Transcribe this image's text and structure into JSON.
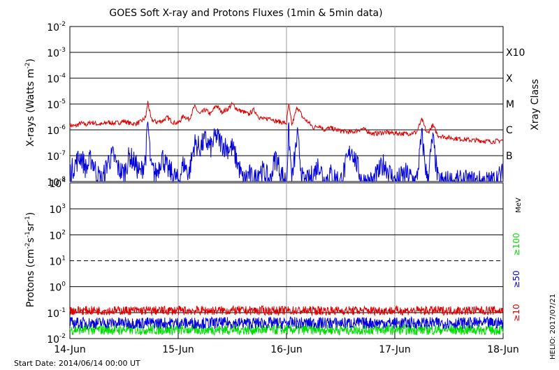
{
  "chart_data": [
    {
      "type": "line",
      "title": "GOES Soft X-ray and Protons Fluxes   (1min & 5min data)",
      "ylabel": "X-rays (Watts m^-2)",
      "ylabel_parts": [
        "X-rays (Watts m",
        "-2",
        ")"
      ],
      "yscale": "log",
      "ylim": [
        1e-08,
        0.01
      ],
      "y_ticks": [
        {
          "base": "10",
          "exp": "-2"
        },
        {
          "base": "10",
          "exp": "-3"
        },
        {
          "base": "10",
          "exp": "-4"
        },
        {
          "base": "10",
          "exp": "-5"
        },
        {
          "base": "10",
          "exp": "-6"
        },
        {
          "base": "10",
          "exp": "-7"
        },
        {
          "base": "10",
          "exp": "-8"
        }
      ],
      "right_axis_label": "Xray Class",
      "class_labels": [
        {
          "label": "X10",
          "value": 0.001
        },
        {
          "label": "X",
          "value": 0.0001
        },
        {
          "label": "M",
          "value": 1e-05
        },
        {
          "label": "C",
          "value": 1e-06
        },
        {
          "label": "B",
          "value": 1e-07
        }
      ],
      "grid": true,
      "series": [
        {
          "color": "#dd0000",
          "x": [
            0,
            0.05,
            0.1,
            0.15,
            0.2,
            0.25,
            0.3,
            0.35,
            0.4,
            0.45,
            0.5,
            0.55,
            0.6,
            0.65,
            0.7,
            0.72,
            0.75,
            0.8,
            0.85,
            0.9,
            0.95,
            1.0,
            1.05,
            1.1,
            1.15,
            1.2,
            1.25,
            1.3,
            1.35,
            1.4,
            1.45,
            1.5,
            1.55,
            1.6,
            1.65,
            1.7,
            1.75,
            1.8,
            1.85,
            1.9,
            1.95,
            2.0,
            2.02,
            2.05,
            2.1,
            2.15,
            2.2,
            2.25,
            2.3,
            2.35,
            2.4,
            2.5,
            2.6,
            2.7,
            2.8,
            2.9,
            3.0,
            3.1,
            3.2,
            3.25,
            3.3,
            3.35,
            3.4,
            3.5,
            3.6,
            3.7,
            3.8,
            3.9,
            4.0
          ],
          "y": [
            1.5e-06,
            1.4e-06,
            1.8e-06,
            1.6e-06,
            2e-06,
            1.7e-06,
            1.6e-06,
            2e-06,
            1.8e-06,
            1.9e-06,
            2.2e-06,
            1.8e-06,
            1.7e-06,
            2e-06,
            3e-06,
            1.2e-05,
            2.5e-06,
            2e-06,
            2.2e-06,
            3e-06,
            2e-06,
            1.8e-06,
            3.5e-06,
            2.5e-06,
            8e-06,
            4e-06,
            6e-06,
            4e-06,
            9e-06,
            5e-06,
            6e-06,
            1e-05,
            6e-06,
            5e-06,
            4e-06,
            6e-06,
            3e-06,
            2.5e-06,
            3e-06,
            2.2e-06,
            2e-06,
            1.8e-06,
            1e-05,
            1.5e-06,
            8e-06,
            3e-06,
            2e-06,
            1.2e-06,
            1.5e-06,
            1e-06,
            1.2e-06,
            9e-07,
            8e-07,
            1.1e-06,
            7e-07,
            8e-07,
            7.5e-07,
            7e-07,
            8e-07,
            2.5e-06,
            7e-07,
            1.5e-06,
            6e-07,
            5e-07,
            4.5e-07,
            4e-07,
            3.8e-07,
            3.5e-07,
            4e-07
          ]
        },
        {
          "color": "#0000dd",
          "x": [
            0,
            0.05,
            0.1,
            0.15,
            0.2,
            0.25,
            0.3,
            0.35,
            0.4,
            0.45,
            0.5,
            0.55,
            0.6,
            0.65,
            0.7,
            0.72,
            0.75,
            0.8,
            0.85,
            0.9,
            0.95,
            1.0,
            1.05,
            1.1,
            1.15,
            1.2,
            1.25,
            1.3,
            1.35,
            1.4,
            1.45,
            1.5,
            1.55,
            1.6,
            1.65,
            1.7,
            1.75,
            1.8,
            1.85,
            1.9,
            1.95,
            2.0,
            2.02,
            2.05,
            2.1,
            2.15,
            2.2,
            2.25,
            2.3,
            2.35,
            2.4,
            2.5,
            2.6,
            2.7,
            2.8,
            2.9,
            3.0,
            3.1,
            3.2,
            3.25,
            3.3,
            3.35,
            3.4,
            3.5,
            3.6,
            3.7,
            3.8,
            3.9,
            4.0
          ],
          "y": [
            2e-08,
            5e-08,
            1e-07,
            3e-08,
            8e-08,
            2e-08,
            1e-08,
            6e-08,
            1e-07,
            3e-08,
            2e-08,
            1e-07,
            5e-08,
            2e-08,
            8e-08,
            2e-06,
            3e-08,
            2e-08,
            1e-07,
            3e-08,
            2e-08,
            1e-08,
            5e-08,
            2e-08,
            3e-07,
            2e-07,
            4e-07,
            2e-07,
            6e-07,
            3e-07,
            2e-07,
            2e-07,
            5e-08,
            1e-08,
            2e-08,
            1e-08,
            3e-08,
            2e-08,
            1e-08,
            1e-07,
            2e-08,
            1e-08,
            1e-06,
            1e-08,
            6e-07,
            1e-08,
            1e-08,
            2e-08,
            5e-08,
            1e-08,
            2e-08,
            1e-08,
            2e-07,
            1e-08,
            1e-08,
            5e-08,
            1e-08,
            2e-08,
            1e-08,
            6e-07,
            1e-08,
            5e-07,
            1e-08,
            1e-08,
            1e-08,
            1e-08,
            1e-08,
            1e-08,
            2e-08
          ]
        }
      ]
    },
    {
      "type": "line",
      "ylabel": "Protons (cm^-2 s^-1 sr^-1)",
      "ylabel_parts": [
        "Protons (cm",
        "-2",
        "s",
        "-1",
        "sr",
        "-1",
        ")"
      ],
      "yscale": "log",
      "ylim": [
        0.01,
        10000
      ],
      "y_ticks": [
        {
          "base": "10",
          "exp": "4"
        },
        {
          "base": "10",
          "exp": "3"
        },
        {
          "base": "10",
          "exp": "2"
        },
        {
          "base": "10",
          "exp": "1"
        },
        {
          "base": "10",
          "exp": "0"
        },
        {
          "base": "10",
          "exp": "-1"
        },
        {
          "base": "10",
          "exp": "-2"
        }
      ],
      "threshold_line": 10,
      "energy_unit": "MeV",
      "energy_labels": [
        {
          "label": "≥100",
          "color": "#00dd00"
        },
        {
          "label": "≥50",
          "color": "#0000dd"
        },
        {
          "label": "≥10",
          "color": "#dd0000"
        }
      ],
      "grid": true,
      "series": [
        {
          "name": "≥10",
          "color": "#dd0000",
          "level": 0.12
        },
        {
          "name": "≥50",
          "color": "#0000dd",
          "level": 0.04
        },
        {
          "name": "≥100",
          "color": "#00dd00",
          "level": 0.022
        }
      ],
      "x_ticks": [
        "14-Jun",
        "15-Jun",
        "16-Jun",
        "17-Jun",
        "18-Jun"
      ],
      "xlim": [
        0,
        4
      ]
    }
  ],
  "footer": {
    "start_date": "Start Date: 2014/06/14 00:00 UT",
    "credit": "HELIO: 2017/07/21"
  },
  "colors": {
    "grid_day": "#999999",
    "axis": "#000000"
  }
}
